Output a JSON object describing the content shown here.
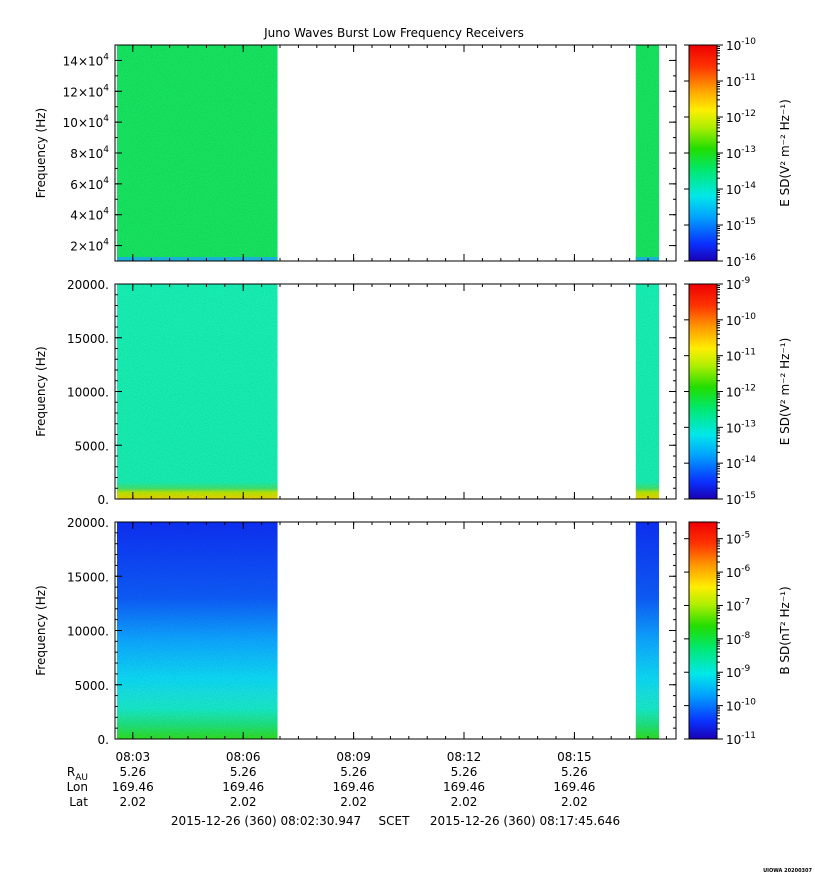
{
  "title": "Juno Waves Burst Low Frequency Receivers",
  "watermark": "UIOWA 20200307",
  "chart_data": [
    {
      "type": "heatmap",
      "panel": "top",
      "ylabel": "Frequency (Hz)",
      "yticks": [
        {
          "base": "2×10",
          "exp": "4",
          "value": 20000
        },
        {
          "base": "4×10",
          "exp": "4",
          "value": 40000
        },
        {
          "base": "6×10",
          "exp": "4",
          "value": 60000
        },
        {
          "base": "8×10",
          "exp": "4",
          "value": 80000
        },
        {
          "base": "10×10",
          "exp": "4",
          "value": 100000
        },
        {
          "base": "12×10",
          "exp": "4",
          "value": 120000
        },
        {
          "base": "14×10",
          "exp": "4",
          "value": 140000
        }
      ],
      "ylim": [
        10000,
        150000
      ],
      "xlim": [
        "08:02:30.947",
        "08:17:45.646"
      ],
      "data_intervals": [
        [
          "08:02:30.947",
          "08:06:56"
        ],
        [
          "08:16:40",
          "08:17:18"
        ]
      ],
      "dominant_level": "~1e-13.5",
      "colorbar": {
        "label": "E SD(V² m⁻² Hz⁻¹)",
        "exponents": [
          "-16",
          "-15",
          "-14",
          "-13",
          "-12",
          "-11",
          "-10"
        ],
        "range": [
          "1e-16",
          "1e-10"
        ]
      }
    },
    {
      "type": "heatmap",
      "panel": "middle",
      "ylabel": "Frequency (Hz)",
      "yticks": [
        "0.",
        "5000.",
        "10000.",
        "15000.",
        "20000."
      ],
      "ylim": [
        0,
        20000
      ],
      "xlim": [
        "08:02:30.947",
        "08:17:45.646"
      ],
      "data_intervals": [
        [
          "08:02:30.947",
          "08:06:56"
        ],
        [
          "08:16:40",
          "08:17:18"
        ]
      ],
      "dominant_level": "~1e-13",
      "low_frequency_band": "0-1000 Hz enhanced to ~1e-11",
      "colorbar": {
        "label": "E SD(V² m⁻² Hz⁻¹)",
        "exponents": [
          "-15",
          "-14",
          "-13",
          "-12",
          "-11",
          "-10",
          "-9"
        ],
        "range": [
          "1e-15",
          "1e-9"
        ]
      }
    },
    {
      "type": "heatmap",
      "panel": "bottom",
      "ylabel": "Frequency (Hz)",
      "yticks": [
        "0.",
        "5000.",
        "10000.",
        "15000.",
        "20000."
      ],
      "ylim": [
        0,
        20000
      ],
      "xlim": [
        "08:02:30.947",
        "08:17:45.646"
      ],
      "data_intervals": [
        [
          "08:02:30.947",
          "08:06:56"
        ],
        [
          "08:16:40",
          "08:17:18"
        ]
      ],
      "gradient": "~1e-8 near 0 Hz decreasing to ~1e-10.5 at 20000 Hz",
      "colorbar": {
        "label": "B SD(nT² Hz⁻¹)",
        "exponents": [
          "-11",
          "-10",
          "-9",
          "-8",
          "-7",
          "-6",
          "-5"
        ],
        "range": [
          "1e-11",
          "1e-4.5"
        ]
      }
    }
  ],
  "xaxis": {
    "ticks": [
      "08:03",
      "08:06",
      "08:09",
      "08:12",
      "08:15"
    ]
  },
  "ephemeris": {
    "rows": [
      {
        "label": "R",
        "sub": "AU",
        "values": [
          "5.26",
          "5.26",
          "5.26",
          "5.26",
          "5.26"
        ]
      },
      {
        "label": "Lon",
        "values": [
          "169.46",
          "169.46",
          "169.46",
          "169.46",
          "169.46"
        ]
      },
      {
        "label": "Lat",
        "values": [
          "2.02",
          "2.02",
          "2.02",
          "2.02",
          "2.02"
        ]
      }
    ]
  },
  "time_range": {
    "start": "2015-12-26 (360) 08:02:30.947",
    "scet": "SCET",
    "end": "2015-12-26 (360) 08:17:45.646"
  },
  "colors": {
    "scale": [
      "#1a00b4",
      "#0a30ff",
      "#00a0ff",
      "#00e8e8",
      "#00e870",
      "#22dd00",
      "#b0ee00",
      "#ffee00",
      "#ff9900",
      "#ff3300",
      "#ee0000"
    ],
    "top_fill": "#14e460",
    "middle_fill": "#18f0b4",
    "middle_band": "#b8e400",
    "bottom_top": "#0a3cf4",
    "bottom_mid": "#10d8ff",
    "bottom_low": "#20dc78",
    "bottom_base": "#2edc28"
  }
}
